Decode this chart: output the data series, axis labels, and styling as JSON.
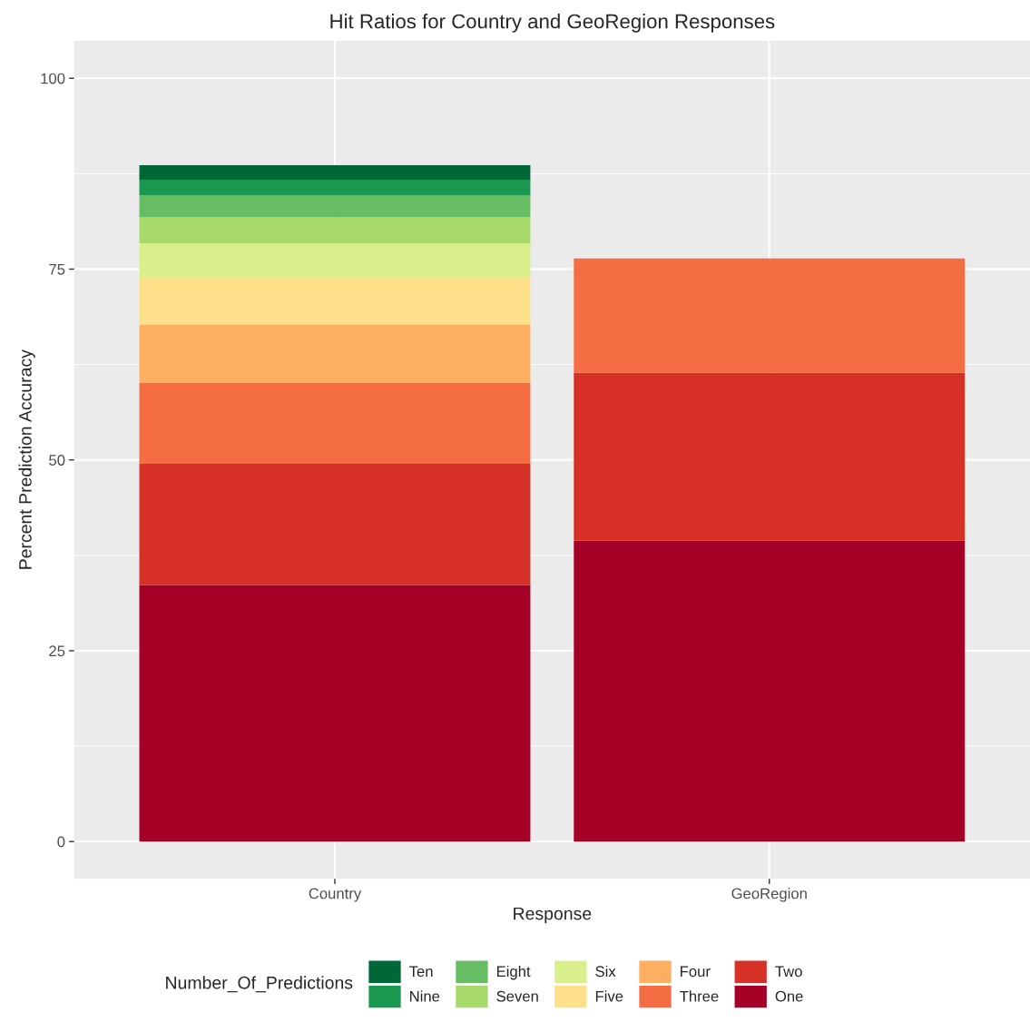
{
  "chart_data": {
    "type": "bar",
    "stacked": true,
    "title": "Hit Ratios for Country and GeoRegion Responses",
    "xlabel": "Response",
    "ylabel": "Percent Prediction Accuracy",
    "legend_title": "Number_Of_Predictions",
    "categories": [
      "Country",
      "GeoRegion"
    ],
    "series": [
      {
        "name": "One",
        "color": "#a50026",
        "values": [
          33.6,
          39.4
        ]
      },
      {
        "name": "Two",
        "color": "#d73027",
        "values": [
          15.9,
          22.0
        ]
      },
      {
        "name": "Three",
        "color": "#f46d43",
        "values": [
          10.6,
          15.0
        ]
      },
      {
        "name": "Four",
        "color": "#fdae61",
        "values": [
          7.6,
          null
        ]
      },
      {
        "name": "Five",
        "color": "#fee08b",
        "values": [
          6.2,
          null
        ]
      },
      {
        "name": "Six",
        "color": "#d9ef8b",
        "values": [
          4.5,
          null
        ]
      },
      {
        "name": "Seven",
        "color": "#a6d96a",
        "values": [
          3.4,
          null
        ]
      },
      {
        "name": "Eight",
        "color": "#66bd63",
        "values": [
          2.9,
          null
        ]
      },
      {
        "name": "Nine",
        "color": "#1a9850",
        "values": [
          2.0,
          null
        ]
      },
      {
        "name": "Ten",
        "color": "#006837",
        "values": [
          1.9,
          null
        ]
      }
    ],
    "ylim": [
      -4.9,
      104.9
    ],
    "yticks": [
      0,
      25,
      50,
      75,
      100
    ],
    "grid": true,
    "legend": "bottom"
  }
}
